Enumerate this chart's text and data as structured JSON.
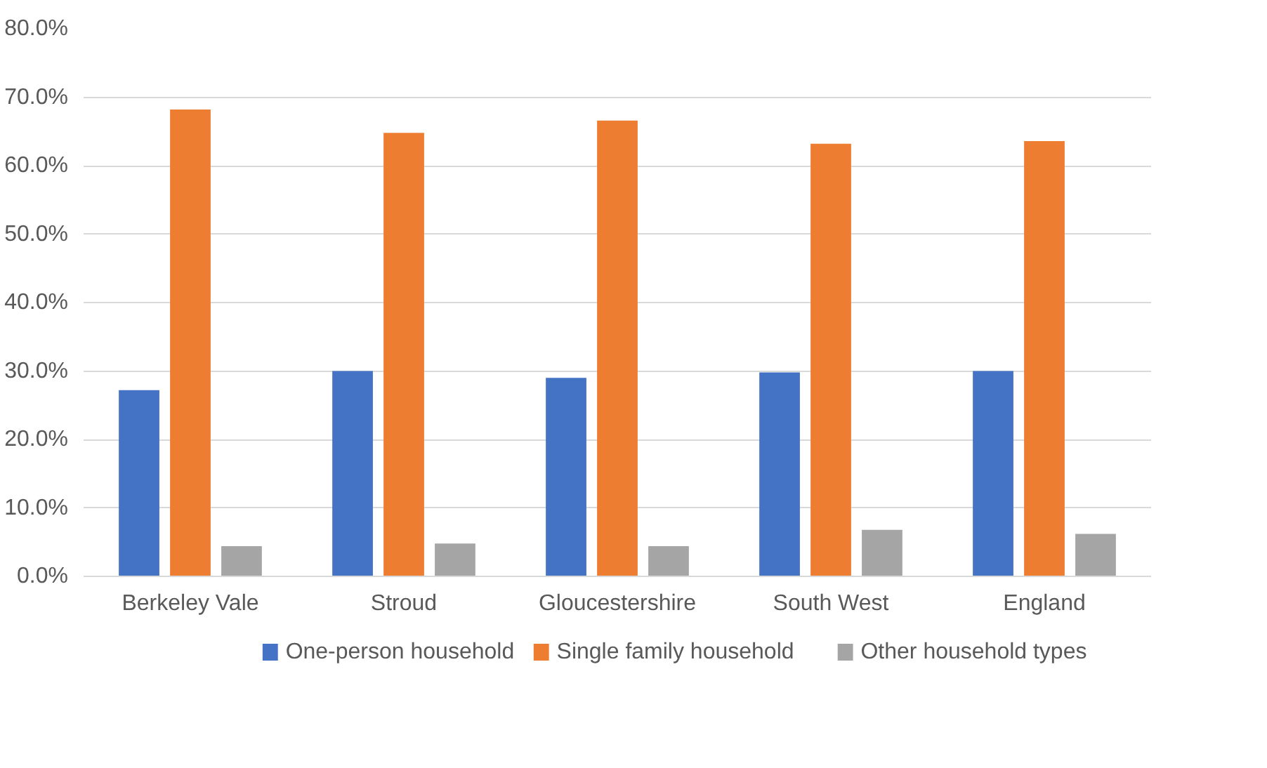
{
  "chart_data": {
    "type": "bar",
    "categories": [
      "Berkeley Vale",
      "Stroud",
      "Gloucestershire",
      "South West",
      "England"
    ],
    "series": [
      {
        "name": "One-person household",
        "color": "#4472c4",
        "values": [
          27.2,
          30.0,
          29.0,
          29.8,
          30.0
        ]
      },
      {
        "name": "Single family household",
        "color": "#ed7d31",
        "values": [
          68.2,
          64.8,
          66.6,
          63.2,
          63.6
        ]
      },
      {
        "name": "Other household types",
        "color": "#a5a5a5",
        "values": [
          4.4,
          4.8,
          4.4,
          6.8,
          6.2
        ]
      }
    ],
    "ylim": [
      0,
      80
    ],
    "yticks": [
      {
        "value": 0,
        "label": "0.0%"
      },
      {
        "value": 10,
        "label": "10.0%"
      },
      {
        "value": 20,
        "label": "20.0%"
      },
      {
        "value": 30,
        "label": "30.0%"
      },
      {
        "value": 40,
        "label": "40.0%"
      },
      {
        "value": 50,
        "label": "50.0%"
      },
      {
        "value": 60,
        "label": "60.0%"
      },
      {
        "value": 70,
        "label": "70.0%"
      },
      {
        "value": 80,
        "label": "80.0%"
      }
    ],
    "grid": "y",
    "legend": "bottom"
  }
}
